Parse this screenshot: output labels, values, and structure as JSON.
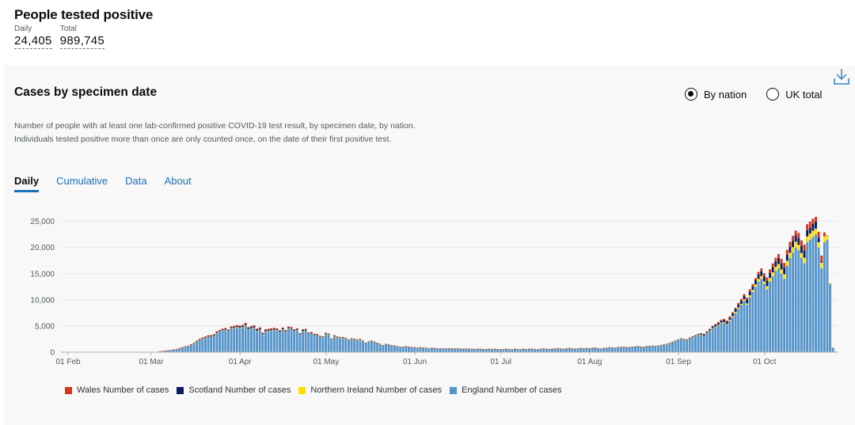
{
  "header": {
    "title": "People tested positive",
    "daily_label": "Daily",
    "daily_value": "24,405",
    "total_label": "Total",
    "total_value": "989,745"
  },
  "card": {
    "title": "Cases by specimen date",
    "radio_by_nation": "By nation",
    "radio_uk_total": "UK total",
    "description": "Number of people with at least one lab-confirmed positive COVID-19 test result, by specimen date, by nation. Individuals tested positive more than once are only counted once, on the date of their first positive test.",
    "tabs": [
      "Daily",
      "Cumulative",
      "Data",
      "About"
    ]
  },
  "colors": {
    "wales": "#d4351c",
    "scotland": "#0b1d5e",
    "ni": "#ffdd00",
    "england": "#5694ca",
    "grid": "#e6e6e6"
  },
  "chart_data": {
    "type": "bar",
    "stacked": true,
    "title": "Cases by specimen date",
    "xlabel": "",
    "ylabel": "",
    "ylim": [
      0,
      26000
    ],
    "yticks": [
      0,
      5000,
      10000,
      15000,
      20000,
      25000
    ],
    "ytick_labels": [
      "0",
      "5,000",
      "10,000",
      "15,000",
      "20,000",
      "25,000"
    ],
    "start_date": "2020-01-30",
    "xticks": [
      {
        "label": "01 Feb",
        "index": 2
      },
      {
        "label": "01 Mar",
        "index": 31
      },
      {
        "label": "01 Apr",
        "index": 62
      },
      {
        "label": "01 May",
        "index": 92
      },
      {
        "label": "01 Jun",
        "index": 123
      },
      {
        "label": "01 Jul",
        "index": 153
      },
      {
        "label": "01 Aug",
        "index": 184
      },
      {
        "label": "01 Sep",
        "index": 215
      },
      {
        "label": "01 Oct",
        "index": 245
      }
    ],
    "legend_position": "bottom",
    "series": [
      {
        "name": "Wales Number of cases",
        "key": "wales",
        "values": [
          0,
          0,
          0,
          0,
          0,
          0,
          0,
          0,
          0,
          0,
          0,
          0,
          0,
          0,
          0,
          0,
          0,
          0,
          0,
          0,
          0,
          0,
          0,
          0,
          0,
          0,
          0,
          0,
          0,
          0,
          0,
          0,
          0,
          0,
          10,
          10,
          20,
          20,
          20,
          30,
          40,
          50,
          60,
          60,
          80,
          90,
          100,
          110,
          120,
          150,
          150,
          150,
          170,
          150,
          160,
          140,
          150,
          160,
          110,
          170,
          190,
          190,
          190,
          200,
          250,
          180,
          200,
          220,
          190,
          200,
          160,
          200,
          190,
          190,
          180,
          170,
          160,
          160,
          130,
          180,
          170,
          160,
          150,
          140,
          160,
          150,
          110,
          140,
          130,
          120,
          110,
          90,
          130,
          120,
          80,
          110,
          100,
          90,
          90,
          80,
          60,
          80,
          80,
          70,
          70,
          60,
          50,
          60,
          60,
          50,
          50,
          40,
          40,
          40,
          40,
          30,
          30,
          30,
          30,
          30,
          30,
          30,
          30,
          20,
          20,
          20,
          20,
          20,
          20,
          20,
          20,
          20,
          20,
          20,
          20,
          20,
          20,
          20,
          20,
          20,
          20,
          20,
          20,
          20,
          20,
          20,
          20,
          20,
          20,
          20,
          20,
          20,
          20,
          20,
          20,
          20,
          20,
          20,
          20,
          20,
          20,
          20,
          20,
          20,
          20,
          20,
          20,
          20,
          20,
          20,
          20,
          20,
          20,
          20,
          20,
          20,
          20,
          20,
          20,
          20,
          20,
          20,
          20,
          20,
          20,
          20,
          20,
          20,
          20,
          20,
          20,
          20,
          20,
          20,
          20,
          20,
          20,
          20,
          20,
          20,
          20,
          20,
          20,
          20,
          20,
          20,
          20,
          20,
          20,
          30,
          20,
          30,
          20,
          30,
          30,
          40,
          30,
          40,
          40,
          50,
          60,
          70,
          80,
          70,
          90,
          110,
          120,
          140,
          160,
          190,
          210,
          200,
          230,
          250,
          270,
          240,
          300,
          330,
          360,
          400,
          420,
          440,
          400,
          480,
          550,
          600,
          640,
          700,
          720,
          640,
          760,
          850,
          900,
          960,
          1000,
          950,
          880,
          1000,
          1050,
          1100,
          1150,
          1200,
          1000,
          900,
          1100,
          1150,
          700,
          120,
          20
        ]
      },
      {
        "name": "Scotland Number of cases",
        "key": "scotland",
        "values": [
          0,
          0,
          0,
          0,
          0,
          0,
          0,
          0,
          0,
          0,
          0,
          0,
          0,
          0,
          0,
          0,
          0,
          0,
          0,
          0,
          0,
          0,
          0,
          0,
          0,
          0,
          0,
          0,
          0,
          0,
          0,
          0,
          0,
          0,
          10,
          10,
          10,
          10,
          20,
          20,
          30,
          40,
          40,
          50,
          50,
          60,
          70,
          80,
          100,
          110,
          110,
          130,
          130,
          140,
          160,
          160,
          170,
          180,
          150,
          170,
          180,
          200,
          220,
          230,
          260,
          230,
          230,
          240,
          220,
          250,
          200,
          210,
          210,
          200,
          200,
          190,
          180,
          190,
          160,
          170,
          170,
          160,
          160,
          140,
          170,
          150,
          110,
          140,
          130,
          120,
          110,
          90,
          130,
          110,
          80,
          100,
          90,
          80,
          80,
          70,
          60,
          70,
          70,
          60,
          60,
          50,
          40,
          50,
          50,
          40,
          40,
          40,
          30,
          30,
          30,
          30,
          30,
          20,
          20,
          20,
          20,
          20,
          20,
          20,
          20,
          20,
          20,
          20,
          20,
          20,
          20,
          20,
          20,
          20,
          20,
          20,
          20,
          20,
          20,
          20,
          20,
          20,
          20,
          20,
          20,
          20,
          20,
          20,
          20,
          20,
          20,
          20,
          20,
          20,
          20,
          20,
          20,
          20,
          20,
          20,
          20,
          20,
          20,
          20,
          20,
          20,
          20,
          20,
          20,
          20,
          20,
          20,
          20,
          20,
          20,
          20,
          20,
          20,
          20,
          20,
          20,
          20,
          20,
          20,
          20,
          20,
          20,
          20,
          20,
          20,
          20,
          20,
          20,
          20,
          20,
          20,
          20,
          20,
          20,
          20,
          20,
          20,
          20,
          30,
          30,
          30,
          30,
          40,
          40,
          40,
          50,
          50,
          60,
          60,
          70,
          80,
          90,
          100,
          110,
          120,
          130,
          150,
          170,
          190,
          220,
          210,
          250,
          280,
          320,
          340,
          380,
          420,
          460,
          420,
          480,
          520,
          580,
          620,
          660,
          700,
          740,
          680,
          800,
          860,
          900,
          980,
          1050,
          950,
          1000,
          1100,
          1150,
          1200,
          1250,
          1150,
          1100,
          1200,
          1250,
          1300,
          1350,
          1400,
          1200,
          1100,
          1300,
          1350,
          900,
          200,
          30
        ]
      },
      {
        "name": "Northern Ireland Number of cases",
        "key": "ni",
        "values": [
          0,
          0,
          0,
          0,
          0,
          0,
          0,
          0,
          0,
          0,
          0,
          0,
          0,
          0,
          0,
          0,
          0,
          0,
          0,
          0,
          0,
          0,
          0,
          0,
          0,
          0,
          0,
          0,
          0,
          0,
          0,
          0,
          0,
          0,
          0,
          0,
          10,
          10,
          10,
          10,
          10,
          20,
          20,
          20,
          30,
          30,
          40,
          40,
          50,
          50,
          50,
          60,
          60,
          60,
          70,
          70,
          70,
          80,
          70,
          80,
          80,
          90,
          90,
          90,
          100,
          90,
          90,
          90,
          90,
          90,
          80,
          80,
          80,
          80,
          80,
          80,
          70,
          70,
          60,
          70,
          70,
          60,
          60,
          60,
          60,
          60,
          50,
          60,
          50,
          50,
          50,
          40,
          50,
          40,
          30,
          40,
          40,
          30,
          30,
          30,
          30,
          30,
          30,
          30,
          20,
          20,
          20,
          20,
          20,
          20,
          20,
          20,
          10,
          10,
          10,
          10,
          10,
          10,
          10,
          10,
          10,
          10,
          10,
          10,
          10,
          10,
          10,
          10,
          10,
          10,
          10,
          10,
          10,
          10,
          10,
          10,
          10,
          10,
          10,
          10,
          10,
          10,
          10,
          10,
          10,
          10,
          10,
          10,
          10,
          10,
          10,
          10,
          10,
          10,
          10,
          10,
          10,
          10,
          10,
          10,
          10,
          10,
          10,
          10,
          10,
          10,
          10,
          10,
          10,
          10,
          10,
          10,
          10,
          10,
          10,
          10,
          10,
          10,
          10,
          10,
          10,
          10,
          10,
          10,
          10,
          10,
          10,
          10,
          10,
          10,
          10,
          10,
          10,
          10,
          10,
          10,
          10,
          10,
          10,
          10,
          10,
          10,
          10,
          10,
          20,
          20,
          20,
          20,
          20,
          20,
          20,
          20,
          30,
          30,
          30,
          40,
          40,
          40,
          50,
          50,
          60,
          60,
          70,
          70,
          80,
          90,
          100,
          110,
          100,
          120,
          130,
          150,
          160,
          180,
          200,
          220,
          250,
          230,
          280,
          320,
          360,
          400,
          450,
          500,
          550,
          500,
          600,
          680,
          750,
          800,
          850,
          800,
          900,
          950,
          1000,
          1050,
          1100,
          1000,
          950,
          1050,
          1100,
          1150,
          1200,
          1100,
          1000,
          1100,
          1150,
          700,
          150,
          20
        ]
      },
      {
        "name": "England Number of cases",
        "key": "england",
        "values": [
          2,
          2,
          0,
          2,
          3,
          2,
          3,
          0,
          2,
          3,
          0,
          2,
          3,
          0,
          2,
          3,
          2,
          0,
          2,
          3,
          2,
          2,
          3,
          5,
          6,
          8,
          10,
          15,
          20,
          30,
          40,
          50,
          60,
          80,
          120,
          200,
          260,
          320,
          380,
          450,
          550,
          700,
          850,
          1000,
          1100,
          1350,
          1600,
          2000,
          2300,
          2500,
          2700,
          2900,
          2900,
          3100,
          3600,
          3900,
          4100,
          4200,
          4000,
          4500,
          4600,
          4700,
          4600,
          4700,
          5000,
          4300,
          4500,
          4600,
          4000,
          4200,
          3300,
          3900,
          4000,
          4100,
          4200,
          4100,
          3800,
          4300,
          3900,
          4500,
          4400,
          4000,
          4200,
          3300,
          4000,
          4100,
          3500,
          3500,
          3200,
          3200,
          2900,
          2800,
          3400,
          3300,
          2400,
          3000,
          2800,
          2700,
          2700,
          2600,
          2300,
          2500,
          2400,
          2300,
          2400,
          2100,
          1700,
          2000,
          2100,
          1900,
          1700,
          1500,
          1300,
          1500,
          1400,
          1300,
          1200,
          1100,
          1000,
          1000,
          1100,
          1000,
          900,
          900,
          800,
          900,
          850,
          800,
          700,
          800,
          750,
          700,
          700,
          650,
          650,
          700,
          700,
          650,
          700,
          650,
          600,
          650,
          600,
          600,
          550,
          600,
          600,
          550,
          550,
          600,
          550,
          600,
          550,
          500,
          550,
          600,
          550,
          500,
          600,
          550,
          500,
          600,
          550,
          600,
          600,
          550,
          500,
          600,
          650,
          600,
          550,
          600,
          650,
          700,
          650,
          600,
          700,
          750,
          700,
          600,
          700,
          750,
          700,
          750,
          700,
          800,
          850,
          700,
          650,
          750,
          800,
          900,
          850,
          800,
          900,
          950,
          1000,
          900,
          900,
          1000,
          1050,
          1100,
          1000,
          1000,
          1100,
          1150,
          1200,
          1100,
          1200,
          1300,
          1400,
          1500,
          1700,
          1900,
          2100,
          2300,
          2500,
          2400,
          2200,
          2600,
          2800,
          3000,
          3200,
          3300,
          3100,
          3600,
          4000,
          4500,
          4800,
          5100,
          5500,
          5600,
          5200,
          6000,
          6700,
          7500,
          8300,
          9000,
          9800,
          9000,
          10500,
          11500,
          12500,
          13500,
          14000,
          13000,
          12000,
          13500,
          14500,
          15500,
          16000,
          15000,
          14000,
          16500,
          18000,
          19000,
          20000,
          19500,
          18000,
          17000,
          21000,
          21500,
          22000,
          22500,
          20000,
          16000,
          21000,
          21500,
          13000,
          900,
          120
        ]
      }
    ]
  }
}
